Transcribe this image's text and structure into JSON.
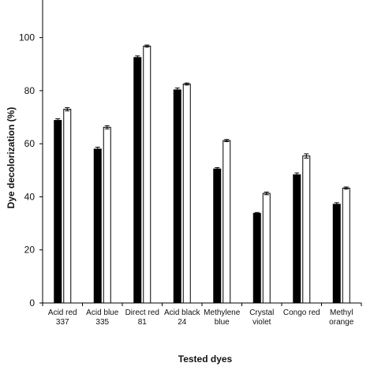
{
  "chart_data": {
    "type": "bar",
    "xlabel": "Tested dyes",
    "ylabel": "Dye decolorization (%)",
    "ylim": [
      0,
      110
    ],
    "yticks": [
      0,
      20,
      40,
      60,
      80,
      100
    ],
    "grid": false,
    "categories": [
      [
        "Acid red",
        "337"
      ],
      [
        "Acid blue",
        "335"
      ],
      [
        "Direct red",
        "81"
      ],
      [
        "Acid black",
        "24"
      ],
      [
        "Methylene",
        "blue"
      ],
      [
        "Crystal",
        "violet"
      ],
      [
        "Congo red"
      ],
      [
        "Methyl",
        "orange"
      ]
    ],
    "series": [
      {
        "color": "#000000",
        "values": [
          68.8,
          58.0,
          92.5,
          80.3,
          50.5,
          33.8,
          48.3,
          37.2
        ],
        "errors": [
          0.6,
          0.7,
          0.6,
          0.7,
          0.5,
          0.3,
          0.7,
          0.6
        ]
      },
      {
        "color": "#ffffff",
        "values": [
          73.0,
          66.2,
          96.8,
          82.5,
          61.2,
          41.3,
          55.4,
          43.3
        ],
        "errors": [
          0.6,
          0.6,
          0.4,
          0.4,
          0.4,
          0.5,
          0.8,
          0.4
        ]
      }
    ]
  }
}
